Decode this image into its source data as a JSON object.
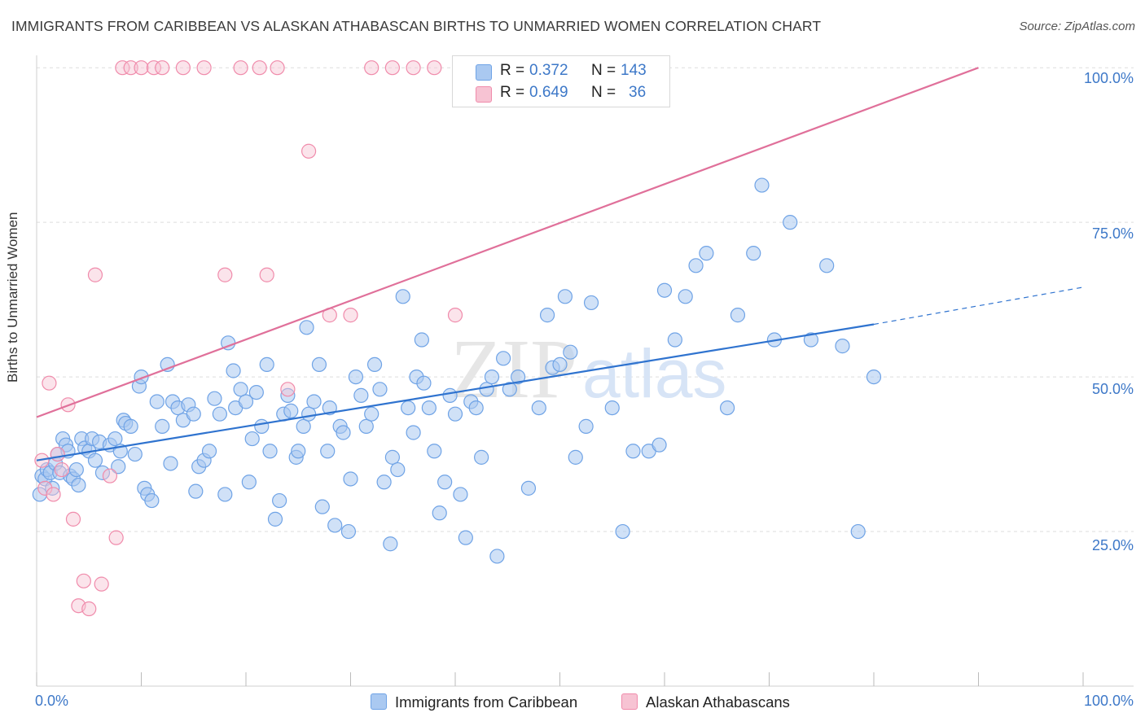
{
  "header": {
    "title": "IMMIGRANTS FROM CARIBBEAN VS ALASKAN ATHABASCAN BIRTHS TO UNMARRIED WOMEN CORRELATION CHART",
    "source": "Source: ZipAtlas.com"
  },
  "watermark": {
    "zip": "ZIP",
    "atlas": "atlas"
  },
  "legend": {
    "r_label": "R =",
    "n_label": "N =",
    "series": [
      {
        "name": "Immigrants from Caribbean",
        "r": "0.372",
        "n": "143",
        "color": "#6fa3e6",
        "fill": "#aac9f1"
      },
      {
        "name": "Alaskan Athabascans",
        "r": "0.649",
        "n": "36",
        "color": "#f08bab",
        "fill": "#f7c3d3"
      }
    ]
  },
  "chart_data": {
    "type": "scatter",
    "title": "IMMIGRANTS FROM CARIBBEAN VS ALASKAN ATHABASCAN BIRTHS TO UNMARRIED WOMEN CORRELATION CHART",
    "xlabel": "",
    "ylabel": "Births to Unmarried Women",
    "xlim": [
      0,
      100
    ],
    "ylim": [
      0,
      102
    ],
    "x_tick_labels": [
      "0.0%",
      "100.0%"
    ],
    "y_ticks": [
      {
        "value": 25,
        "label": "25.0%"
      },
      {
        "value": 50,
        "label": "50.0%"
      },
      {
        "value": 75,
        "label": "75.0%"
      },
      {
        "value": 100,
        "label": "100.0%"
      }
    ],
    "series": [
      {
        "name": "Immigrants from Caribbean",
        "trend": {
          "x0": 0,
          "y0": 36.5,
          "x1": 80,
          "y1": 58.5,
          "dash_to_x": 100,
          "dash_to_y": 64.5
        },
        "points": [
          [
            0.3,
            31
          ],
          [
            0.5,
            34
          ],
          [
            0.8,
            33.5
          ],
          [
            1.0,
            35
          ],
          [
            1.3,
            34.5
          ],
          [
            1.5,
            32
          ],
          [
            1.8,
            36
          ],
          [
            2.0,
            37.5
          ],
          [
            2.2,
            34.5
          ],
          [
            2.5,
            40
          ],
          [
            2.8,
            39
          ],
          [
            3.0,
            38
          ],
          [
            3.2,
            34
          ],
          [
            3.5,
            33.5
          ],
          [
            3.8,
            35
          ],
          [
            4.0,
            32.5
          ],
          [
            4.3,
            40
          ],
          [
            4.6,
            38.5
          ],
          [
            5.0,
            38
          ],
          [
            5.3,
            40
          ],
          [
            5.6,
            36.5
          ],
          [
            6.0,
            39.5
          ],
          [
            6.3,
            34.5
          ],
          [
            7.0,
            39
          ],
          [
            7.5,
            40
          ],
          [
            7.8,
            35.5
          ],
          [
            8.0,
            38
          ],
          [
            8.3,
            43
          ],
          [
            8.5,
            42.5
          ],
          [
            9.0,
            42
          ],
          [
            9.4,
            37.5
          ],
          [
            9.8,
            48.5
          ],
          [
            10.0,
            50
          ],
          [
            10.3,
            32
          ],
          [
            10.6,
            31
          ],
          [
            11.0,
            30
          ],
          [
            11.5,
            46
          ],
          [
            12.0,
            42
          ],
          [
            12.5,
            52
          ],
          [
            12.8,
            36
          ],
          [
            13.0,
            46
          ],
          [
            13.5,
            45
          ],
          [
            14.0,
            43
          ],
          [
            14.5,
            45.5
          ],
          [
            15.0,
            44
          ],
          [
            15.2,
            31.5
          ],
          [
            15.5,
            35.5
          ],
          [
            16.0,
            36.5
          ],
          [
            16.5,
            38
          ],
          [
            17.0,
            46.5
          ],
          [
            17.5,
            44
          ],
          [
            18.0,
            31
          ],
          [
            18.3,
            55.5
          ],
          [
            18.8,
            51
          ],
          [
            19.0,
            45
          ],
          [
            19.5,
            48
          ],
          [
            20.0,
            46
          ],
          [
            20.3,
            33
          ],
          [
            20.6,
            40
          ],
          [
            21.0,
            47.5
          ],
          [
            21.5,
            42
          ],
          [
            22.0,
            52
          ],
          [
            22.3,
            38
          ],
          [
            22.8,
            27
          ],
          [
            23.2,
            30
          ],
          [
            23.6,
            44
          ],
          [
            24.0,
            47
          ],
          [
            24.3,
            44.5
          ],
          [
            24.8,
            37
          ],
          [
            25.0,
            38
          ],
          [
            25.5,
            42
          ],
          [
            25.8,
            58
          ],
          [
            26.0,
            44
          ],
          [
            26.5,
            46
          ],
          [
            27.0,
            52
          ],
          [
            27.3,
            29
          ],
          [
            27.8,
            38
          ],
          [
            28.0,
            45
          ],
          [
            28.5,
            26
          ],
          [
            29.0,
            42
          ],
          [
            29.3,
            41
          ],
          [
            29.8,
            25
          ],
          [
            30.0,
            33.5
          ],
          [
            30.5,
            50
          ],
          [
            31.0,
            47
          ],
          [
            31.5,
            42
          ],
          [
            32.0,
            44
          ],
          [
            32.3,
            52
          ],
          [
            32.8,
            48
          ],
          [
            33.2,
            33
          ],
          [
            33.8,
            23
          ],
          [
            34.0,
            37
          ],
          [
            34.5,
            35
          ],
          [
            35.0,
            63
          ],
          [
            35.5,
            45
          ],
          [
            36.0,
            41
          ],
          [
            36.3,
            50
          ],
          [
            36.8,
            56
          ],
          [
            37.0,
            49
          ],
          [
            37.5,
            45
          ],
          [
            38.0,
            38
          ],
          [
            38.5,
            28
          ],
          [
            39.0,
            33
          ],
          [
            39.5,
            47
          ],
          [
            40.0,
            44
          ],
          [
            40.5,
            31
          ],
          [
            41.0,
            24
          ],
          [
            41.5,
            46
          ],
          [
            42.0,
            45
          ],
          [
            42.5,
            37
          ],
          [
            43.0,
            48
          ],
          [
            43.5,
            50
          ],
          [
            44.0,
            21
          ],
          [
            44.6,
            53
          ],
          [
            45.2,
            48
          ],
          [
            46.0,
            50
          ],
          [
            47.0,
            32
          ],
          [
            48.0,
            45
          ],
          [
            48.8,
            60
          ],
          [
            49.3,
            51.5
          ],
          [
            50.0,
            52
          ],
          [
            50.5,
            63
          ],
          [
            51.0,
            54
          ],
          [
            51.5,
            37
          ],
          [
            52.5,
            42
          ],
          [
            53.0,
            62
          ],
          [
            55.0,
            45
          ],
          [
            56.0,
            25
          ],
          [
            57.0,
            38
          ],
          [
            58.5,
            38
          ],
          [
            59.5,
            39
          ],
          [
            60.0,
            64
          ],
          [
            61.0,
            56
          ],
          [
            62.0,
            63
          ],
          [
            63.0,
            68
          ],
          [
            64.0,
            70
          ],
          [
            66.0,
            45
          ],
          [
            67.0,
            60
          ],
          [
            68.5,
            70
          ],
          [
            69.3,
            81
          ],
          [
            70.5,
            56
          ],
          [
            72.0,
            75
          ],
          [
            74.0,
            56
          ],
          [
            75.5,
            68
          ],
          [
            77.0,
            55
          ],
          [
            78.5,
            25
          ],
          [
            80.0,
            50
          ]
        ]
      },
      {
        "name": "Alaskan Athabascans",
        "trend": {
          "x0": 0,
          "y0": 43.5,
          "x1": 90,
          "y1": 100
        },
        "points": [
          [
            0.5,
            36.5
          ],
          [
            0.8,
            32
          ],
          [
            1.2,
            49
          ],
          [
            1.6,
            31
          ],
          [
            2.0,
            37.5
          ],
          [
            2.4,
            35
          ],
          [
            3.0,
            45.5
          ],
          [
            3.5,
            27
          ],
          [
            4.0,
            13
          ],
          [
            4.5,
            17
          ],
          [
            5.0,
            12.5
          ],
          [
            5.6,
            66.5
          ],
          [
            6.2,
            16.5
          ],
          [
            7.0,
            34
          ],
          [
            7.6,
            24
          ],
          [
            8.2,
            100
          ],
          [
            9.0,
            100
          ],
          [
            10.0,
            100
          ],
          [
            11.2,
            100
          ],
          [
            12.0,
            100
          ],
          [
            14.0,
            100
          ],
          [
            16.0,
            100
          ],
          [
            18.0,
            66.5
          ],
          [
            19.5,
            100
          ],
          [
            21.3,
            100
          ],
          [
            22.0,
            66.5
          ],
          [
            23.0,
            100
          ],
          [
            24.0,
            48
          ],
          [
            26.0,
            86.5
          ],
          [
            28.0,
            60
          ],
          [
            30.0,
            60
          ],
          [
            32.0,
            100
          ],
          [
            34.0,
            100
          ],
          [
            36.0,
            100
          ],
          [
            38.0,
            100
          ],
          [
            40.0,
            60
          ]
        ]
      }
    ]
  }
}
